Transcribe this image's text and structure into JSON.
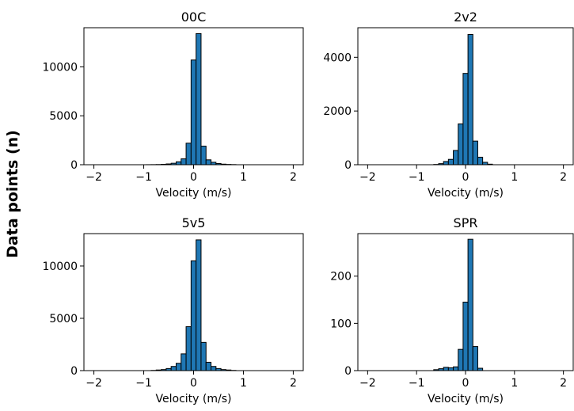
{
  "figure": {
    "ylabel": "Data points (n)"
  },
  "colors": {
    "bar_fill": "#1f77b4",
    "bar_edge": "#000000"
  },
  "chart_data": [
    {
      "type": "bar",
      "title": "00C",
      "xlabel": "Velocity (m/s)",
      "ylabel": "",
      "xlim": [
        -2.2,
        2.2
      ],
      "ylim": [
        0,
        14000
      ],
      "xticks": [
        -2,
        -1,
        0,
        1,
        2
      ],
      "xtick_labels": [
        "−2",
        "−1",
        "0",
        "1",
        "2"
      ],
      "yticks": [
        0,
        5000,
        10000
      ],
      "ytick_labels": [
        "0",
        "5000",
        "10000"
      ],
      "bin_width": 0.1,
      "bins": [
        {
          "x": -0.9,
          "y": 5
        },
        {
          "x": -0.8,
          "y": 10
        },
        {
          "x": -0.7,
          "y": 20
        },
        {
          "x": -0.6,
          "y": 40
        },
        {
          "x": -0.5,
          "y": 80
        },
        {
          "x": -0.4,
          "y": 150
        },
        {
          "x": -0.3,
          "y": 300
        },
        {
          "x": -0.2,
          "y": 600
        },
        {
          "x": -0.1,
          "y": 2200
        },
        {
          "x": 0.0,
          "y": 10700
        },
        {
          "x": 0.1,
          "y": 13400
        },
        {
          "x": 0.2,
          "y": 1900
        },
        {
          "x": 0.3,
          "y": 500
        },
        {
          "x": 0.4,
          "y": 250
        },
        {
          "x": 0.5,
          "y": 120
        },
        {
          "x": 0.6,
          "y": 60
        },
        {
          "x": 0.7,
          "y": 30
        },
        {
          "x": 0.8,
          "y": 15
        }
      ]
    },
    {
      "type": "bar",
      "title": "2v2",
      "xlabel": "Velocity (m/s)",
      "ylabel": "",
      "xlim": [
        -2.2,
        2.2
      ],
      "ylim": [
        0,
        5100
      ],
      "xticks": [
        -2,
        -1,
        0,
        1,
        2
      ],
      "xtick_labels": [
        "−2",
        "−1",
        "0",
        "1",
        "2"
      ],
      "yticks": [
        0,
        2000,
        4000
      ],
      "ytick_labels": [
        "0",
        "2000",
        "4000"
      ],
      "bin_width": 0.1,
      "bins": [
        {
          "x": -0.6,
          "y": 10
        },
        {
          "x": -0.5,
          "y": 40
        },
        {
          "x": -0.4,
          "y": 120
        },
        {
          "x": -0.3,
          "y": 200
        },
        {
          "x": -0.2,
          "y": 530
        },
        {
          "x": -0.1,
          "y": 1520
        },
        {
          "x": 0.0,
          "y": 3400
        },
        {
          "x": 0.1,
          "y": 4850
        },
        {
          "x": 0.2,
          "y": 880
        },
        {
          "x": 0.3,
          "y": 280
        },
        {
          "x": 0.4,
          "y": 90
        },
        {
          "x": 0.5,
          "y": 20
        }
      ]
    },
    {
      "type": "bar",
      "title": "5v5",
      "xlabel": "Velocity (m/s)",
      "ylabel": "",
      "xlim": [
        -2.2,
        2.2
      ],
      "ylim": [
        0,
        13100
      ],
      "xticks": [
        -2,
        -1,
        0,
        1,
        2
      ],
      "xtick_labels": [
        "−2",
        "−1",
        "0",
        "1",
        "2"
      ],
      "yticks": [
        0,
        5000,
        10000
      ],
      "ytick_labels": [
        "0",
        "5000",
        "10000"
      ],
      "bin_width": 0.1,
      "bins": [
        {
          "x": -0.8,
          "y": 20
        },
        {
          "x": -0.7,
          "y": 60
        },
        {
          "x": -0.6,
          "y": 100
        },
        {
          "x": -0.5,
          "y": 200
        },
        {
          "x": -0.4,
          "y": 400
        },
        {
          "x": -0.3,
          "y": 700
        },
        {
          "x": -0.2,
          "y": 1600
        },
        {
          "x": -0.1,
          "y": 4200
        },
        {
          "x": 0.0,
          "y": 10500
        },
        {
          "x": 0.1,
          "y": 12500
        },
        {
          "x": 0.2,
          "y": 2700
        },
        {
          "x": 0.3,
          "y": 800
        },
        {
          "x": 0.4,
          "y": 400
        },
        {
          "x": 0.5,
          "y": 200
        },
        {
          "x": 0.6,
          "y": 100
        },
        {
          "x": 0.7,
          "y": 60
        },
        {
          "x": 0.8,
          "y": 20
        }
      ]
    },
    {
      "type": "bar",
      "title": "SPR",
      "xlabel": "Velocity (m/s)",
      "ylabel": "",
      "xlim": [
        -2.2,
        2.2
      ],
      "ylim": [
        0,
        290
      ],
      "xticks": [
        -2,
        -1,
        0,
        1,
        2
      ],
      "xtick_labels": [
        "−2",
        "−1",
        "0",
        "1",
        "2"
      ],
      "yticks": [
        0,
        100,
        200
      ],
      "ytick_labels": [
        "0",
        "100",
        "200"
      ],
      "bin_width": 0.1,
      "bins": [
        {
          "x": -0.6,
          "y": 2
        },
        {
          "x": -0.5,
          "y": 4
        },
        {
          "x": -0.4,
          "y": 7
        },
        {
          "x": -0.3,
          "y": 6
        },
        {
          "x": -0.2,
          "y": 8
        },
        {
          "x": -0.1,
          "y": 45
        },
        {
          "x": 0.0,
          "y": 145
        },
        {
          "x": 0.1,
          "y": 278
        },
        {
          "x": 0.2,
          "y": 51
        },
        {
          "x": 0.3,
          "y": 5
        }
      ]
    }
  ]
}
